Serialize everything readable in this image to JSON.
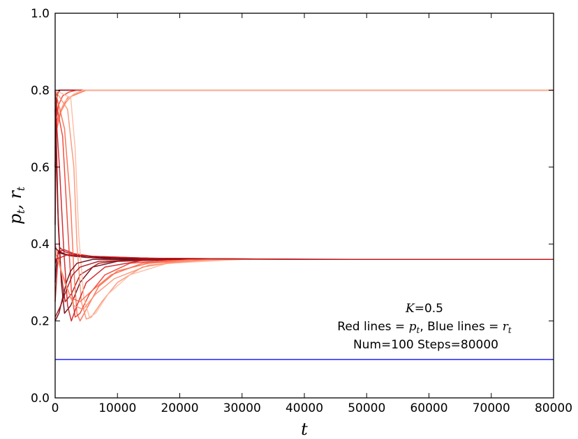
{
  "chart_data": {
    "type": "line",
    "xlabel": "t",
    "ylabel": "p_t, r_t",
    "xlim": [
      0,
      80000
    ],
    "ylim": [
      0.0,
      1.0
    ],
    "xticks": [
      0,
      10000,
      20000,
      30000,
      40000,
      50000,
      60000,
      70000,
      80000
    ],
    "xtick_labels": [
      "0",
      "10000",
      "20000",
      "30000",
      "40000",
      "50000",
      "60000",
      "70000",
      "80000"
    ],
    "yticks": [
      0.0,
      0.2,
      0.4,
      0.6,
      0.8,
      1.0
    ],
    "ytick_labels": [
      "0.0",
      "0.2",
      "0.4",
      "0.6",
      "0.8",
      "1.0"
    ],
    "grid": false,
    "annotations": {
      "k_label": "K",
      "k_value": "=0.5",
      "red_label": "Red lines",
      "red_sym": "p",
      "blue_label": "Blue lines",
      "blue_sym": "r",
      "run_info": "Num=100 Steps=80000"
    },
    "colors": {
      "blue_line": "#3333ff",
      "red_dark": "#67000d",
      "red_mid": "#cb181d",
      "red_light": "#fc9272",
      "red_pale": "#fcbba1"
    },
    "series": [
      {
        "group": "red",
        "color": "#67000d",
        "x": [
          0,
          300,
          800,
          1500,
          2500,
          80000
        ],
        "y": [
          0.6,
          0.79,
          0.8,
          0.8,
          0.8,
          0.8
        ]
      },
      {
        "group": "red",
        "color": "#a50f15",
        "x": [
          0,
          200,
          600,
          1200,
          80000
        ],
        "y": [
          0.45,
          0.78,
          0.8,
          0.8,
          0.8
        ]
      },
      {
        "group": "red",
        "color": "#ef3b2c",
        "x": [
          0,
          500,
          1200,
          2200,
          3500,
          80000
        ],
        "y": [
          0.65,
          0.76,
          0.785,
          0.795,
          0.8,
          0.8
        ]
      },
      {
        "group": "red",
        "color": "#fc9272",
        "x": [
          0,
          800,
          1800,
          3000,
          4500,
          80000
        ],
        "y": [
          0.7,
          0.74,
          0.77,
          0.79,
          0.8,
          0.8
        ]
      },
      {
        "group": "red",
        "color": "#fb6a4a",
        "x": [
          0,
          1000,
          2000,
          3500,
          5000,
          80000
        ],
        "y": [
          0.68,
          0.75,
          0.78,
          0.79,
          0.8,
          0.8
        ]
      },
      {
        "group": "red",
        "color": "#fcbba1",
        "x": [
          0,
          1500,
          3000,
          4500,
          80000
        ],
        "y": [
          0.72,
          0.77,
          0.79,
          0.8,
          0.8
        ]
      },
      {
        "group": "red",
        "color": "#67000d",
        "x": [
          0,
          500,
          1000,
          1500,
          2500,
          4000,
          6000,
          10000,
          20000,
          40000,
          80000
        ],
        "y": [
          0.8,
          0.45,
          0.3,
          0.22,
          0.24,
          0.3,
          0.34,
          0.355,
          0.36,
          0.36,
          0.36
        ]
      },
      {
        "group": "red",
        "color": "#a50f15",
        "x": [
          0,
          400,
          900,
          1600,
          2600,
          4000,
          7000,
          12000,
          25000,
          80000
        ],
        "y": [
          0.75,
          0.5,
          0.33,
          0.25,
          0.27,
          0.32,
          0.35,
          0.36,
          0.36,
          0.36
        ]
      },
      {
        "group": "red",
        "color": "#67000d",
        "x": [
          0,
          300,
          800,
          1400,
          2200,
          3200,
          5000,
          9000,
          20000,
          80000
        ],
        "y": [
          0.3,
          0.37,
          0.38,
          0.375,
          0.37,
          0.368,
          0.365,
          0.362,
          0.36,
          0.36
        ]
      },
      {
        "group": "red",
        "color": "#cb181d",
        "x": [
          0,
          500,
          1500,
          3000,
          6000,
          15000,
          40000,
          80000
        ],
        "y": [
          0.25,
          0.38,
          0.385,
          0.375,
          0.368,
          0.363,
          0.36,
          0.36
        ]
      },
      {
        "group": "red",
        "color": "#a50f15",
        "x": [
          0,
          800,
          1500,
          2500,
          4000,
          8000,
          20000,
          80000
        ],
        "y": [
          0.35,
          0.39,
          0.38,
          0.375,
          0.37,
          0.365,
          0.36,
          0.36
        ]
      },
      {
        "group": "red",
        "color": "#fb6a4a",
        "x": [
          0,
          1500,
          2500,
          3000,
          3500,
          4000,
          5000,
          7000,
          10000,
          15000,
          25000,
          80000
        ],
        "y": [
          0.8,
          0.7,
          0.5,
          0.33,
          0.22,
          0.2,
          0.23,
          0.29,
          0.33,
          0.35,
          0.36,
          0.36
        ]
      },
      {
        "group": "red",
        "color": "#fc9272",
        "x": [
          0,
          2000,
          3000,
          3500,
          4200,
          5000,
          5800,
          7500,
          10000,
          14000,
          20000,
          30000,
          80000
        ],
        "y": [
          0.8,
          0.75,
          0.6,
          0.4,
          0.25,
          0.205,
          0.21,
          0.25,
          0.3,
          0.34,
          0.355,
          0.36,
          0.36
        ]
      },
      {
        "group": "red",
        "color": "#ef3b2c",
        "x": [
          0,
          1200,
          2000,
          2600,
          3200,
          4000,
          5500,
          8000,
          12000,
          20000,
          80000
        ],
        "y": [
          0.78,
          0.68,
          0.45,
          0.28,
          0.21,
          0.22,
          0.27,
          0.32,
          0.35,
          0.36,
          0.36
        ]
      },
      {
        "group": "red",
        "color": "#cb181d",
        "x": [
          0,
          700,
          1400,
          2000,
          2600,
          3500,
          5000,
          8000,
          15000,
          80000
        ],
        "y": [
          0.77,
          0.6,
          0.38,
          0.24,
          0.2,
          0.24,
          0.3,
          0.34,
          0.36,
          0.36
        ]
      },
      {
        "group": "red",
        "color": "#fcbba1",
        "x": [
          0,
          2500,
          3200,
          3800,
          4600,
          5500,
          6500,
          8500,
          12000,
          18000,
          30000,
          80000
        ],
        "y": [
          0.8,
          0.78,
          0.65,
          0.42,
          0.26,
          0.21,
          0.22,
          0.27,
          0.32,
          0.35,
          0.36,
          0.36
        ]
      },
      {
        "group": "red",
        "color": "#67000d",
        "x": [
          0,
          600,
          1200,
          1800,
          2500,
          3500,
          6000,
          12000,
          80000
        ],
        "y": [
          0.2,
          0.22,
          0.26,
          0.3,
          0.33,
          0.35,
          0.36,
          0.36,
          0.36
        ]
      },
      {
        "group": "red",
        "color": "#a50f15",
        "x": [
          0,
          900,
          1800,
          2800,
          4000,
          7000,
          15000,
          80000
        ],
        "y": [
          0.21,
          0.24,
          0.28,
          0.32,
          0.34,
          0.355,
          0.36,
          0.36
        ]
      },
      {
        "group": "red",
        "color": "#fb6a4a",
        "x": [
          0,
          1000,
          2500,
          4000,
          6000,
          9000,
          14000,
          22000,
          80000
        ],
        "y": [
          0.4,
          0.33,
          0.26,
          0.25,
          0.28,
          0.32,
          0.35,
          0.36,
          0.36
        ]
      },
      {
        "group": "red",
        "color": "#fc9272",
        "x": [
          0,
          1500,
          3000,
          4500,
          6500,
          9500,
          15000,
          25000,
          80000
        ],
        "y": [
          0.38,
          0.3,
          0.24,
          0.23,
          0.27,
          0.31,
          0.345,
          0.36,
          0.36
        ]
      },
      {
        "group": "red",
        "color": "#67000d",
        "x": [
          0,
          1000,
          3000,
          8000,
          20000,
          50000,
          80000
        ],
        "y": [
          0.39,
          0.375,
          0.37,
          0.365,
          0.362,
          0.36,
          0.36
        ]
      },
      {
        "group": "red",
        "color": "#cb181d",
        "x": [
          0,
          2000,
          6000,
          15000,
          40000,
          80000
        ],
        "y": [
          0.36,
          0.372,
          0.368,
          0.363,
          0.36,
          0.36
        ]
      },
      {
        "group": "blue",
        "color": "#3333ff",
        "x": [
          0,
          80000
        ],
        "y": [
          0.1,
          0.1
        ]
      }
    ]
  }
}
